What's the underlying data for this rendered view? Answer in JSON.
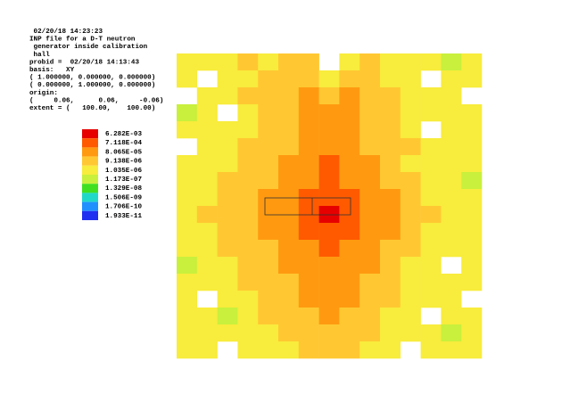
{
  "chart_data": {
    "type": "heatmap",
    "annotations": [
      " 02/20/18 14:23:23",
      "INP file for a D-T neutron",
      " generator inside calibration",
      " hall",
      "probid =  02/20/18 14:13:43",
      "basis:   XY",
      "( 1.000000, 0.000000, 0.000000)",
      "( 0.000000, 1.000000, 0.000000)",
      "origin:",
      "(     0.06,      0.06,     -0.06)",
      "extent = (   100.00,    100.00)"
    ],
    "colorbar": {
      "ticks": [
        {
          "value": 0.006282,
          "label": "6.282E-03"
        },
        {
          "value": 0.0007118,
          "label": "7.118E-04"
        },
        {
          "value": 8.065e-05,
          "label": "8.065E-05"
        },
        {
          "value": 9.138e-06,
          "label": "9.138E-06"
        },
        {
          "value": 1.035e-06,
          "label": "1.035E-06"
        },
        {
          "value": 1.173e-07,
          "label": "1.173E-07"
        },
        {
          "value": 1.329e-08,
          "label": "1.329E-08"
        },
        {
          "value": 1.506e-09,
          "label": "1.506E-09"
        },
        {
          "value": 1.706e-10,
          "label": "1.706E-10"
        },
        {
          "value": 1.933e-11,
          "label": "1.933E-11"
        }
      ],
      "colors": [
        "#e60000",
        "#ff5a00",
        "#ff9a10",
        "#ffc832",
        "#f8ec3c",
        "#c8f03c",
        "#40e020",
        "#20d8c8",
        "#2090ff",
        "#2030f0"
      ]
    },
    "values": [
      [
        3e-06,
        3e-06,
        3e-06,
        2e-05,
        3e-06,
        2e-05,
        2e-05,
        null,
        3e-06,
        2e-05,
        3e-06,
        3e-06,
        3e-06,
        3e-07,
        3e-06
      ],
      [
        3e-06,
        null,
        3e-06,
        3e-06,
        2e-05,
        2e-05,
        2e-05,
        3e-06,
        2e-05,
        2e-05,
        3e-06,
        3e-06,
        null,
        3e-06,
        3e-06
      ],
      [
        null,
        3e-06,
        3e-06,
        2e-05,
        2e-05,
        2e-05,
        0.0002,
        2e-05,
        0.0002,
        2e-05,
        2e-05,
        3e-06,
        3e-06,
        3e-06,
        null
      ],
      [
        3e-07,
        3e-06,
        null,
        3e-06,
        2e-05,
        2e-05,
        0.0002,
        0.0002,
        0.0002,
        2e-05,
        2e-05,
        3e-06,
        3e-06,
        3e-06,
        3e-06
      ],
      [
        3e-06,
        3e-06,
        3e-06,
        3e-06,
        2e-05,
        2e-05,
        0.0002,
        0.0002,
        0.0002,
        2e-05,
        2e-05,
        3e-06,
        null,
        3e-06,
        3e-06
      ],
      [
        null,
        3e-06,
        3e-06,
        2e-05,
        2e-05,
        2e-05,
        0.0002,
        0.0002,
        0.0002,
        2e-05,
        2e-05,
        2e-05,
        3e-06,
        3e-06,
        3e-06
      ],
      [
        3e-06,
        3e-06,
        3e-06,
        2e-05,
        2e-05,
        0.0002,
        0.0002,
        0.002,
        0.0002,
        0.0002,
        2e-05,
        3e-06,
        3e-06,
        3e-06,
        3e-06
      ],
      [
        3e-06,
        3e-06,
        2e-05,
        2e-05,
        2e-05,
        0.0002,
        0.0002,
        0.002,
        0.0002,
        0.0002,
        2e-05,
        2e-05,
        3e-06,
        3e-06,
        3e-07
      ],
      [
        3e-06,
        3e-06,
        2e-05,
        2e-05,
        0.0002,
        0.0002,
        0.002,
        0.002,
        0.002,
        0.0002,
        0.0002,
        2e-05,
        3e-06,
        3e-06,
        3e-06
      ],
      [
        3e-06,
        2e-05,
        2e-05,
        2e-05,
        0.0002,
        0.0002,
        0.002,
        0.01,
        0.002,
        0.0002,
        0.0002,
        2e-05,
        2e-05,
        3e-06,
        3e-06
      ],
      [
        3e-06,
        3e-06,
        2e-05,
        2e-05,
        0.0002,
        0.0002,
        0.002,
        0.002,
        0.002,
        0.0002,
        0.0002,
        2e-05,
        3e-06,
        3e-06,
        3e-06
      ],
      [
        3e-06,
        3e-06,
        2e-05,
        2e-05,
        2e-05,
        0.0002,
        0.0002,
        0.002,
        0.0002,
        0.0002,
        2e-05,
        2e-05,
        3e-06,
        3e-06,
        3e-06
      ],
      [
        3e-07,
        3e-06,
        3e-06,
        2e-05,
        2e-05,
        0.0002,
        0.0002,
        0.0002,
        0.0002,
        0.0002,
        2e-05,
        3e-06,
        3e-06,
        null,
        3e-06
      ],
      [
        3e-06,
        3e-06,
        3e-06,
        2e-05,
        2e-05,
        2e-05,
        0.0002,
        0.0002,
        0.0002,
        2e-05,
        2e-05,
        3e-06,
        3e-06,
        3e-06,
        3e-06
      ],
      [
        3e-06,
        null,
        3e-06,
        3e-06,
        2e-05,
        2e-05,
        0.0002,
        0.0002,
        0.0002,
        2e-05,
        2e-05,
        3e-06,
        3e-06,
        3e-06,
        null
      ],
      [
        3e-06,
        3e-06,
        3e-07,
        3e-06,
        2e-05,
        2e-05,
        2e-05,
        0.0002,
        2e-05,
        2e-05,
        3e-06,
        3e-06,
        null,
        3e-06,
        3e-06
      ],
      [
        3e-06,
        3e-06,
        3e-06,
        3e-06,
        3e-06,
        2e-05,
        2e-05,
        2e-05,
        2e-05,
        2e-05,
        3e-06,
        3e-06,
        3e-06,
        3e-07,
        3e-06
      ],
      [
        3e-06,
        3e-06,
        null,
        3e-06,
        3e-06,
        3e-06,
        2e-05,
        2e-05,
        2e-05,
        3e-06,
        3e-06,
        null,
        3e-06,
        3e-06,
        3e-06
      ]
    ]
  }
}
